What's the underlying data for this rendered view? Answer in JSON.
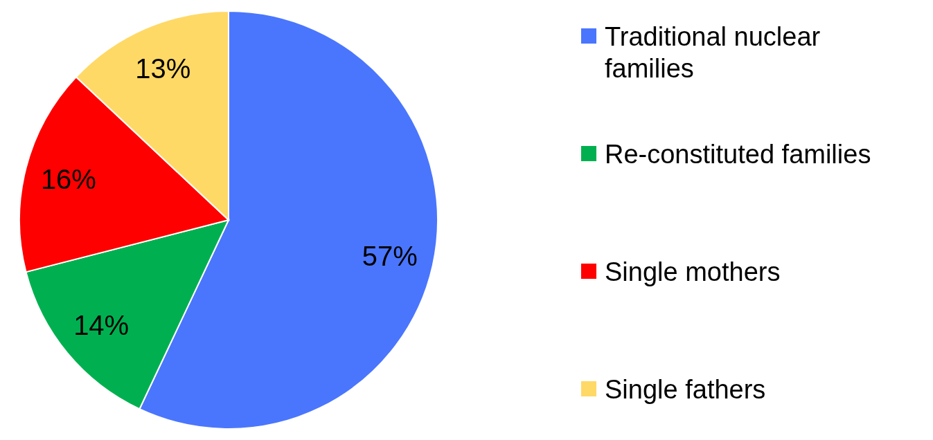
{
  "chart_data": {
    "type": "pie",
    "categories": [
      "Traditional nuclear families",
      "Re-constituted families",
      "Single mothers",
      "Single fathers"
    ],
    "values": [
      57,
      14,
      16,
      13
    ],
    "value_labels": [
      "57%",
      "14%",
      "16%",
      "13%"
    ],
    "colors": [
      "#4a76fd",
      "#00b050",
      "#ff0000",
      "#ffd966"
    ],
    "legend": "right"
  }
}
